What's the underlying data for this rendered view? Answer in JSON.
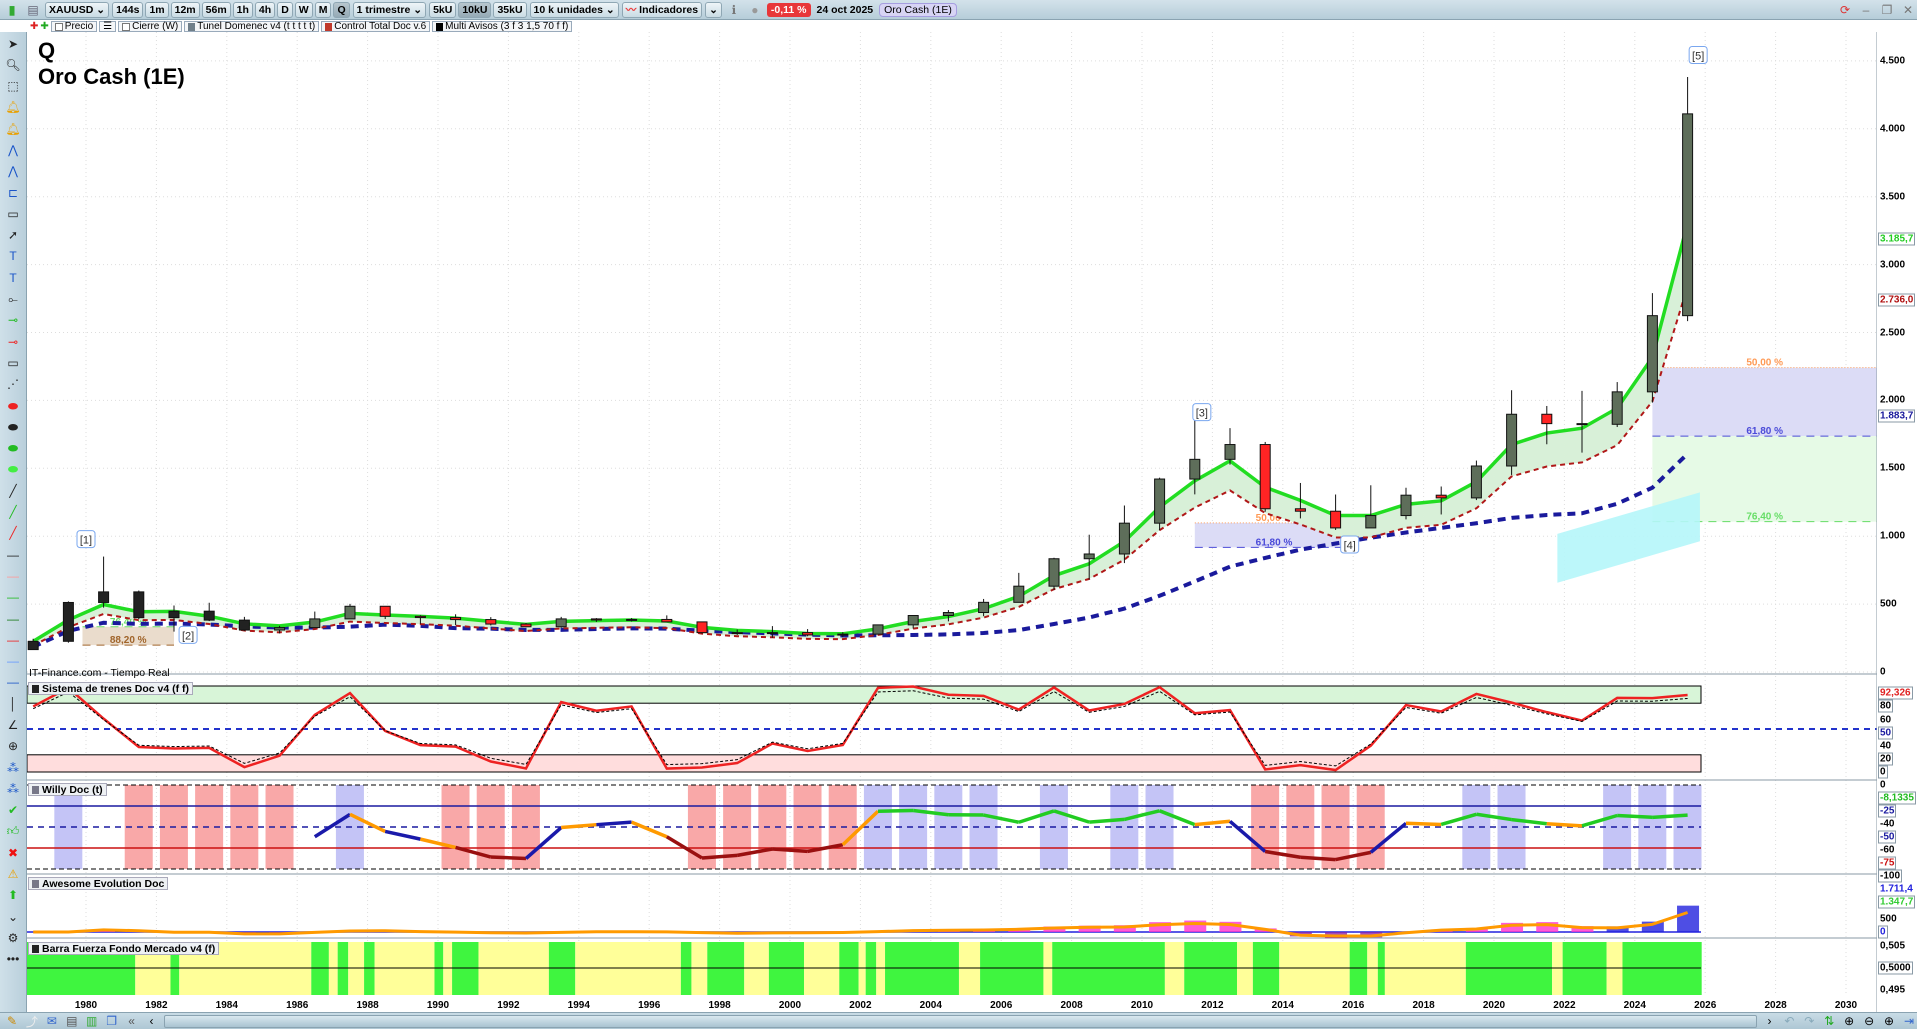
{
  "toolbar": {
    "symbol": "XAUUSD",
    "timeframes": [
      "144s",
      "1m",
      "12m",
      "56m",
      "1h",
      "4h",
      "D",
      "W",
      "M",
      "Q"
    ],
    "active_timeframe": "Q",
    "period_select": "1 trimestre",
    "units": [
      "5kU",
      "10kU",
      "35kU"
    ],
    "active_unit": "10kU",
    "units_select": "10 k unidades",
    "indicators_label": "Indicadores",
    "change_pct": "-0,11 %",
    "date": "24 oct 2025",
    "chart_name": "Oro Cash (1E)"
  },
  "indicator_bar": {
    "price_label": "Precio",
    "close_label": "Cierre (W)",
    "items": [
      {
        "label": "Tunel Domenec v4 (t t t t t)",
        "color": "#6f7f8a"
      },
      {
        "label": "Control Total Doc v.6",
        "color": "#c0392b"
      },
      {
        "label": "Multi Avisos (3 f 3 1,5 70 f f)",
        "color": "#000000"
      }
    ]
  },
  "chart_title": {
    "line1": "Q",
    "line2": "Oro Cash (1E)"
  },
  "source_label": "IT-Finance.com - Tiempo Real",
  "panels": {
    "sistema": "Sistema de trenes Doc v4 (f f)",
    "willy": "Willy Doc (t)",
    "awesome": "Awesome Evolution Doc",
    "barra": "Barra Fuerza Fondo Mercado v4 (f)"
  },
  "left_tools": [
    "pointer-icon",
    "zoom-icon",
    "zoom-area-icon",
    "alarm-cursor-icon",
    "alarm-icon",
    "fibonacci-icon",
    "horizontal-fib-icon",
    "channel-icon",
    "rectangle-icon",
    "arrow-icon",
    "text-icon",
    "callout-icon",
    "segment-icon",
    "green-marker-icon",
    "red-marker-icon",
    "ruler-icon",
    "projection-icon",
    "red-ellipse-icon",
    "grey-ellipse-icon",
    "green-ellipse-icon",
    "light-green-ellipse-icon",
    "black-line-icon",
    "green-line-icon",
    "red-line-icon",
    "black-hline-icon",
    "pink-hline-icon",
    "green-hline-icon",
    "dark-green-hline-icon",
    "red-hline-icon",
    "light-blue-hline-icon",
    "blue-hline-icon",
    "vertical-line-icon",
    "angle-icon",
    "circle-cross-icon",
    "wave-abc-icon",
    "wave-numbers-icon",
    "check-icon",
    "thumbs-up-icon",
    "delete-icon",
    "warning-icon",
    "up-arrow-icon",
    "expand-icon",
    "settings-icon",
    "more-icon"
  ],
  "chart_data": {
    "type": "candlestick",
    "x_axis": {
      "ticks": [
        1980,
        1982,
        1984,
        1986,
        1988,
        1990,
        1992,
        1994,
        1996,
        1998,
        2000,
        2002,
        2004,
        2006,
        2008,
        2010,
        2012,
        2014,
        2016,
        2018,
        2020,
        2022,
        2024,
        2026,
        2028,
        2030
      ],
      "range": [
        1977.2,
        2030.9
      ]
    },
    "y_axis": {
      "ticks": [
        "0",
        "500",
        "1.000",
        "1.500",
        "2.000",
        "2.500",
        "3.000",
        "3.500",
        "4.000",
        "4.500"
      ],
      "tick_values": [
        0,
        500,
        1000,
        1500,
        2000,
        2500,
        3000,
        3500,
        4000,
        4500
      ],
      "range": [
        0,
        4700
      ]
    },
    "grid": true,
    "candles": [
      {
        "t": 1978,
        "o": 165,
        "h": 245,
        "l": 165,
        "c": 226
      },
      {
        "t": 1979,
        "o": 226,
        "h": 520,
        "l": 216,
        "c": 512
      },
      {
        "t": 1980,
        "o": 512,
        "h": 850,
        "l": 474,
        "c": 590
      },
      {
        "t": 1981,
        "o": 590,
        "h": 600,
        "l": 390,
        "c": 400
      },
      {
        "t": 1982,
        "o": 400,
        "h": 490,
        "l": 297,
        "c": 448
      },
      {
        "t": 1983,
        "o": 448,
        "h": 510,
        "l": 375,
        "c": 382
      },
      {
        "t": 1984,
        "o": 382,
        "h": 406,
        "l": 303,
        "c": 309
      },
      {
        "t": 1985,
        "o": 309,
        "h": 340,
        "l": 284,
        "c": 327
      },
      {
        "t": 1986,
        "o": 327,
        "h": 445,
        "l": 326,
        "c": 391
      },
      {
        "t": 1987,
        "o": 391,
        "h": 502,
        "l": 390,
        "c": 484
      },
      {
        "t": 1988,
        "o": 484,
        "h": 484,
        "l": 390,
        "c": 410
      },
      {
        "t": 1989,
        "o": 410,
        "h": 418,
        "l": 355,
        "c": 401
      },
      {
        "t": 1990,
        "o": 401,
        "h": 425,
        "l": 345,
        "c": 386
      },
      {
        "t": 1991,
        "o": 386,
        "h": 404,
        "l": 343,
        "c": 353
      },
      {
        "t": 1992,
        "o": 353,
        "h": 361,
        "l": 329,
        "c": 333
      },
      {
        "t": 1993,
        "o": 333,
        "h": 406,
        "l": 326,
        "c": 391
      },
      {
        "t": 1994,
        "o": 391,
        "h": 397,
        "l": 369,
        "c": 383
      },
      {
        "t": 1995,
        "o": 383,
        "h": 397,
        "l": 372,
        "c": 387
      },
      {
        "t": 1996,
        "o": 387,
        "h": 417,
        "l": 367,
        "c": 369
      },
      {
        "t": 1997,
        "o": 369,
        "h": 367,
        "l": 283,
        "c": 290
      },
      {
        "t": 1998,
        "o": 290,
        "h": 313,
        "l": 273,
        "c": 288
      },
      {
        "t": 1999,
        "o": 288,
        "h": 338,
        "l": 252,
        "c": 290
      },
      {
        "t": 2000,
        "o": 290,
        "h": 316,
        "l": 263,
        "c": 273
      },
      {
        "t": 2001,
        "o": 273,
        "h": 293,
        "l": 255,
        "c": 279
      },
      {
        "t": 2002,
        "o": 279,
        "h": 349,
        "l": 278,
        "c": 347
      },
      {
        "t": 2003,
        "o": 347,
        "h": 417,
        "l": 320,
        "c": 416
      },
      {
        "t": 2004,
        "o": 416,
        "h": 456,
        "l": 373,
        "c": 438
      },
      {
        "t": 2005,
        "o": 438,
        "h": 538,
        "l": 411,
        "c": 513
      },
      {
        "t": 2006,
        "o": 513,
        "h": 730,
        "l": 513,
        "c": 632
      },
      {
        "t": 2007,
        "o": 632,
        "h": 841,
        "l": 603,
        "c": 834
      },
      {
        "t": 2008,
        "o": 834,
        "h": 1011,
        "l": 681,
        "c": 869
      },
      {
        "t": 2009,
        "o": 869,
        "h": 1226,
        "l": 802,
        "c": 1096
      },
      {
        "t": 2010,
        "o": 1096,
        "h": 1431,
        "l": 1044,
        "c": 1421
      },
      {
        "t": 2011,
        "o": 1421,
        "h": 1921,
        "l": 1308,
        "c": 1566
      },
      {
        "t": 2012,
        "o": 1566,
        "h": 1796,
        "l": 1527,
        "c": 1675
      },
      {
        "t": 2013,
        "o": 1675,
        "h": 1694,
        "l": 1180,
        "c": 1202
      },
      {
        "t": 2014,
        "o": 1202,
        "h": 1392,
        "l": 1131,
        "c": 1184
      },
      {
        "t": 2015,
        "o": 1184,
        "h": 1307,
        "l": 1046,
        "c": 1061
      },
      {
        "t": 2016,
        "o": 1061,
        "h": 1375,
        "l": 1061,
        "c": 1152
      },
      {
        "t": 2017,
        "o": 1152,
        "h": 1357,
        "l": 1124,
        "c": 1302
      },
      {
        "t": 2018,
        "o": 1302,
        "h": 1366,
        "l": 1160,
        "c": 1282
      },
      {
        "t": 2019,
        "o": 1282,
        "h": 1557,
        "l": 1266,
        "c": 1517
      },
      {
        "t": 2020,
        "o": 1517,
        "h": 2075,
        "l": 1451,
        "c": 1898
      },
      {
        "t": 2021,
        "o": 1898,
        "h": 1959,
        "l": 1677,
        "c": 1829
      },
      {
        "t": 2022,
        "o": 1829,
        "h": 2070,
        "l": 1615,
        "c": 1824
      },
      {
        "t": 2023,
        "o": 1824,
        "h": 2135,
        "l": 1804,
        "c": 2063
      },
      {
        "t": 2024,
        "o": 2063,
        "h": 2790,
        "l": 1984,
        "c": 2624
      },
      {
        "t": 2025,
        "o": 2624,
        "h": 4381,
        "l": 2584,
        "c": 4110
      }
    ],
    "price_markers": [
      {
        "label": "3.185,7",
        "value": 3185.7,
        "color": "#22cc22"
      },
      {
        "label": "2.736,0",
        "value": 2736.0,
        "color": "#b01010"
      },
      {
        "label": "1.883,7",
        "value": 1883.7,
        "color": "#1a1a9c"
      }
    ],
    "waves": [
      {
        "label": "[1]",
        "t": 1980.0,
        "p": 975
      },
      {
        "label": "[2]",
        "t": 1982.9,
        "p": 270
      },
      {
        "label": "[3]",
        "t": 2011.7,
        "p": 1910
      },
      {
        "label": "[4]",
        "t": 2015.9,
        "p": 935
      },
      {
        "label": "[5]",
        "t": 2025.8,
        "p": 4540
      }
    ],
    "fib_zones": [
      {
        "from": 1979.9,
        "to": 1982.5,
        "levels": [
          {
            "label": "76,40 %",
            "p": 333,
            "color": "#66dd66"
          },
          {
            "label": "88,20 %",
            "p": 198,
            "color": "#a0642a"
          }
        ],
        "fill": "#eadccc"
      },
      {
        "from": 2011.5,
        "to": 2016.0,
        "levels": [
          {
            "label": "50,00 %",
            "p": 1098,
            "color": "#ff9a55"
          },
          {
            "label": "61,80 %",
            "p": 918,
            "color": "#4a4ad8"
          }
        ],
        "fill": "#dcdcf6"
      },
      {
        "from": 2024.5,
        "to": 2030.9,
        "levels": [
          {
            "label": "50,00 %",
            "p": 2241,
            "color": "#ff9a55"
          },
          {
            "label": "61,80 %",
            "p": 1737,
            "color": "#4a4ad8"
          },
          {
            "label": "76,40 %",
            "p": 1107,
            "color": "#66dd66"
          }
        ],
        "fill": "#dcdcf6",
        "fill2": "#e6fae6"
      }
    ],
    "projection_band": {
      "from": 2021.8,
      "to": 2025.85,
      "low": [
        657,
        963
      ],
      "high": [
        1017,
        1323
      ],
      "color": "#b5f6fa"
    },
    "sistema_axis": [
      {
        "label": "92,326",
        "value": 92.3,
        "color": "#e02020",
        "boxed": true
      },
      {
        "label": "80",
        "value": 80,
        "boxed": true
      },
      {
        "label": "60",
        "value": 60
      },
      {
        "label": "50",
        "value": 50,
        "color": "#1a1aa0",
        "boxed": true
      },
      {
        "label": "40",
        "value": 40
      },
      {
        "label": "20",
        "value": 20,
        "boxed": true
      },
      {
        "label": "0",
        "value": 0,
        "boxed": true
      }
    ],
    "willy_axis": [
      {
        "label": "0",
        "value": 0
      },
      {
        "label": "-8,1335",
        "value": -8.13,
        "color": "#22bb22",
        "boxed": true
      },
      {
        "label": "-25",
        "value": -25,
        "color": "#1a1aa0",
        "boxed": true
      },
      {
        "label": "-40",
        "value": -40
      },
      {
        "label": "-50",
        "value": -50,
        "color": "#1a1aa0",
        "boxed": true
      },
      {
        "label": "-60",
        "value": -60
      },
      {
        "label": "-75",
        "value": -75,
        "color": "#cc1010",
        "boxed": true
      },
      {
        "label": "-100",
        "value": -100,
        "boxed": true
      }
    ],
    "awesome_axis": [
      {
        "label": "1.711,4",
        "value": 1711.4,
        "color": "#2222dd"
      },
      {
        "label": "1.347,7",
        "value": 1347.7,
        "color": "#33cc33",
        "boxed": true
      },
      {
        "label": "500",
        "value": 500
      },
      {
        "label": "0",
        "value": 0,
        "color": "#2222dd",
        "boxed": true
      }
    ],
    "barra_axis": [
      {
        "label": "0,505",
        "value": 0.505
      },
      {
        "label": "0,5000",
        "value": 0.5,
        "boxed": true
      },
      {
        "label": "0,495",
        "value": 0.495
      }
    ],
    "barra_segments": [
      [
        1978.3,
        1981.4,
        "g"
      ],
      [
        1981.4,
        1982.4,
        "y"
      ],
      [
        1982.4,
        1982.65,
        "g"
      ],
      [
        1982.65,
        1986.4,
        "y"
      ],
      [
        1986.4,
        1986.9,
        "g"
      ],
      [
        1986.9,
        1987.15,
        "y"
      ],
      [
        1987.15,
        1987.45,
        "g"
      ],
      [
        1987.45,
        1987.9,
        "y"
      ],
      [
        1987.9,
        1988.2,
        "g"
      ],
      [
        1988.2,
        1989.9,
        "y"
      ],
      [
        1989.9,
        1990.15,
        "g"
      ],
      [
        1990.15,
        1990.4,
        "y"
      ],
      [
        1990.4,
        1991.15,
        "g"
      ],
      [
        1991.15,
        1993.15,
        "y"
      ],
      [
        1993.15,
        1993.9,
        "g"
      ],
      [
        1993.9,
        1996.9,
        "y"
      ],
      [
        1996.9,
        1997.2,
        "g"
      ],
      [
        1997.2,
        1997.65,
        "y"
      ],
      [
        1997.65,
        1998.7,
        "g"
      ],
      [
        1998.7,
        1999.4,
        "y"
      ],
      [
        1999.4,
        2000.4,
        "g"
      ],
      [
        2000.4,
        2001.4,
        "y"
      ],
      [
        2001.4,
        2001.95,
        "g"
      ],
      [
        2001.95,
        2002.15,
        "y"
      ],
      [
        2002.15,
        2002.45,
        "g"
      ],
      [
        2002.45,
        2002.7,
        "y"
      ],
      [
        2002.7,
        2004.8,
        "g"
      ],
      [
        2004.8,
        2005.4,
        "y"
      ],
      [
        2005.4,
        2007.2,
        "g"
      ],
      [
        2007.2,
        2007.45,
        "y"
      ],
      [
        2007.45,
        2010.65,
        "g"
      ],
      [
        2010.65,
        2011.2,
        "y"
      ],
      [
        2011.2,
        2012.7,
        "g"
      ],
      [
        2012.7,
        2013.15,
        "y"
      ],
      [
        2013.15,
        2013.9,
        "g"
      ],
      [
        2013.9,
        2015.9,
        "y"
      ],
      [
        2015.9,
        2016.4,
        "g"
      ],
      [
        2016.4,
        2016.7,
        "y"
      ],
      [
        2016.7,
        2016.9,
        "g"
      ],
      [
        2016.9,
        2019.2,
        "y"
      ],
      [
        2019.2,
        2021.65,
        "g"
      ],
      [
        2021.65,
        2021.95,
        "y"
      ],
      [
        2021.95,
        2023.2,
        "g"
      ],
      [
        2023.2,
        2023.65,
        "y"
      ],
      [
        2023.65,
        2025.9,
        "g"
      ]
    ],
    "colors": {
      "ema": "#22dd22",
      "lower": "#b01818",
      "long_ma": "#1a1a9c",
      "barra_green": "#3ff53f",
      "barra_yellow": "#ffff99"
    }
  }
}
